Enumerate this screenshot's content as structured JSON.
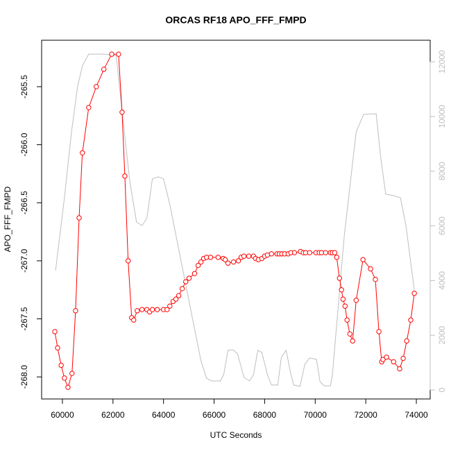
{
  "chart_data": {
    "type": "line",
    "title": "ORCAS RF18 APO_FFF_FMPD",
    "xlabel": "UTC Seconds",
    "ylabel": "APO_FFF_FMPD",
    "xlim": [
      59178,
      74548
    ],
    "xticks": [
      60000,
      62000,
      64000,
      66000,
      68000,
      70000,
      72000,
      74000
    ],
    "ylim": [
      -268.19,
      -265.1
    ],
    "yticks": [
      {
        "value": -268.0,
        "label": "-268.0"
      },
      -267.5,
      {
        "value": -267.0,
        "label": "-267.0"
      },
      -266.5,
      {
        "value": -266.0,
        "label": "-266.0"
      },
      -265.5
    ],
    "y2lim": [
      -330,
      12787
    ],
    "y2ticks": [
      0,
      2000,
      4000,
      6000,
      8000,
      10000,
      12000
    ],
    "y2color": "#bebebe",
    "series": [
      {
        "color": "#bebebe",
        "axis": "y2",
        "markers": false,
        "x": [
          59730,
          60080,
          60360,
          60600,
          60790,
          61040,
          61640,
          62130,
          62330,
          62660,
          62930,
          63150,
          63340,
          63560,
          63780,
          64000,
          64250,
          64660,
          65150,
          65480,
          65700,
          65890,
          66250,
          66380,
          66550,
          66740,
          66930,
          67180,
          67400,
          67560,
          67730,
          67890,
          68110,
          68270,
          68520,
          68660,
          68850,
          69040,
          69150,
          69400,
          69590,
          69780,
          70050,
          70190,
          70360,
          70600,
          70680,
          71150,
          71620,
          71920,
          72410,
          72600,
          72790,
          73070,
          73370,
          73590,
          73920
        ],
        "values": [
          4370,
          7030,
          9440,
          11090,
          11850,
          12280,
          12280,
          12230,
          10460,
          7660,
          6140,
          6010,
          6270,
          7720,
          7790,
          7720,
          6780,
          4870,
          2590,
          1070,
          430,
          330,
          330,
          560,
          1450,
          1470,
          1320,
          460,
          330,
          560,
          1450,
          1370,
          560,
          180,
          180,
          1190,
          1450,
          560,
          180,
          130,
          940,
          1170,
          1120,
          300,
          150,
          150,
          560,
          5640,
          9440,
          10080,
          10100,
          8430,
          7160,
          7110,
          7030,
          6010,
          3650
        ]
      },
      {
        "color": "#ff0000",
        "markers": true,
        "x": [
          59700,
          59810,
          59950,
          60080,
          60220,
          60380,
          60520,
          60660,
          60790,
          61040,
          61340,
          61640,
          61950,
          62220,
          62360,
          62470,
          62600,
          62740,
          62820,
          62960,
          63150,
          63340,
          63450,
          63560,
          63750,
          64000,
          64140,
          64250,
          64380,
          64490,
          64600,
          64740,
          64880,
          65010,
          65230,
          65370,
          65480,
          65590,
          65700,
          65860,
          66160,
          66360,
          66440,
          66550,
          66770,
          66960,
          67070,
          67180,
          67370,
          67560,
          67640,
          67750,
          67890,
          68000,
          68110,
          68270,
          68490,
          68580,
          68680,
          68790,
          68930,
          69040,
          69180,
          69420,
          69530,
          69620,
          69780,
          70030,
          70160,
          70250,
          70410,
          70600,
          70680,
          70770,
          70850,
          70960,
          71040,
          71100,
          71180,
          71260,
          71370,
          71480,
          71620,
          71890,
          72190,
          72380,
          72520,
          72630,
          72680,
          72820,
          73100,
          73340,
          73480,
          73620,
          73780,
          73920
        ],
        "values": [
          -267.61,
          -267.75,
          -267.9,
          -268.01,
          -268.09,
          -267.97,
          -267.43,
          -266.63,
          -266.07,
          -265.68,
          -265.5,
          -265.35,
          -265.22,
          -265.22,
          -265.72,
          -266.27,
          -267.0,
          -267.49,
          -267.51,
          -267.43,
          -267.42,
          -267.42,
          -267.44,
          -267.42,
          -267.42,
          -267.42,
          -267.42,
          -267.39,
          -267.35,
          -267.33,
          -267.3,
          -267.24,
          -267.18,
          -267.15,
          -267.11,
          -267.04,
          -267.01,
          -266.98,
          -266.97,
          -266.97,
          -266.97,
          -266.98,
          -266.99,
          -267.02,
          -267.01,
          -267.0,
          -266.97,
          -266.96,
          -266.96,
          -266.96,
          -266.98,
          -266.99,
          -266.98,
          -266.96,
          -266.95,
          -266.94,
          -266.94,
          -266.94,
          -266.94,
          -266.94,
          -266.94,
          -266.93,
          -266.93,
          -266.92,
          -266.93,
          -266.93,
          -266.93,
          -266.93,
          -266.93,
          -266.93,
          -266.93,
          -266.93,
          -266.93,
          -266.93,
          -266.97,
          -267.15,
          -267.25,
          -267.33,
          -267.39,
          -267.51,
          -267.63,
          -267.69,
          -267.34,
          -266.99,
          -267.07,
          -267.16,
          -267.61,
          -267.87,
          -267.85,
          -267.83,
          -267.87,
          -267.93,
          -267.84,
          -267.69,
          -267.51,
          -267.28
        ]
      }
    ]
  }
}
